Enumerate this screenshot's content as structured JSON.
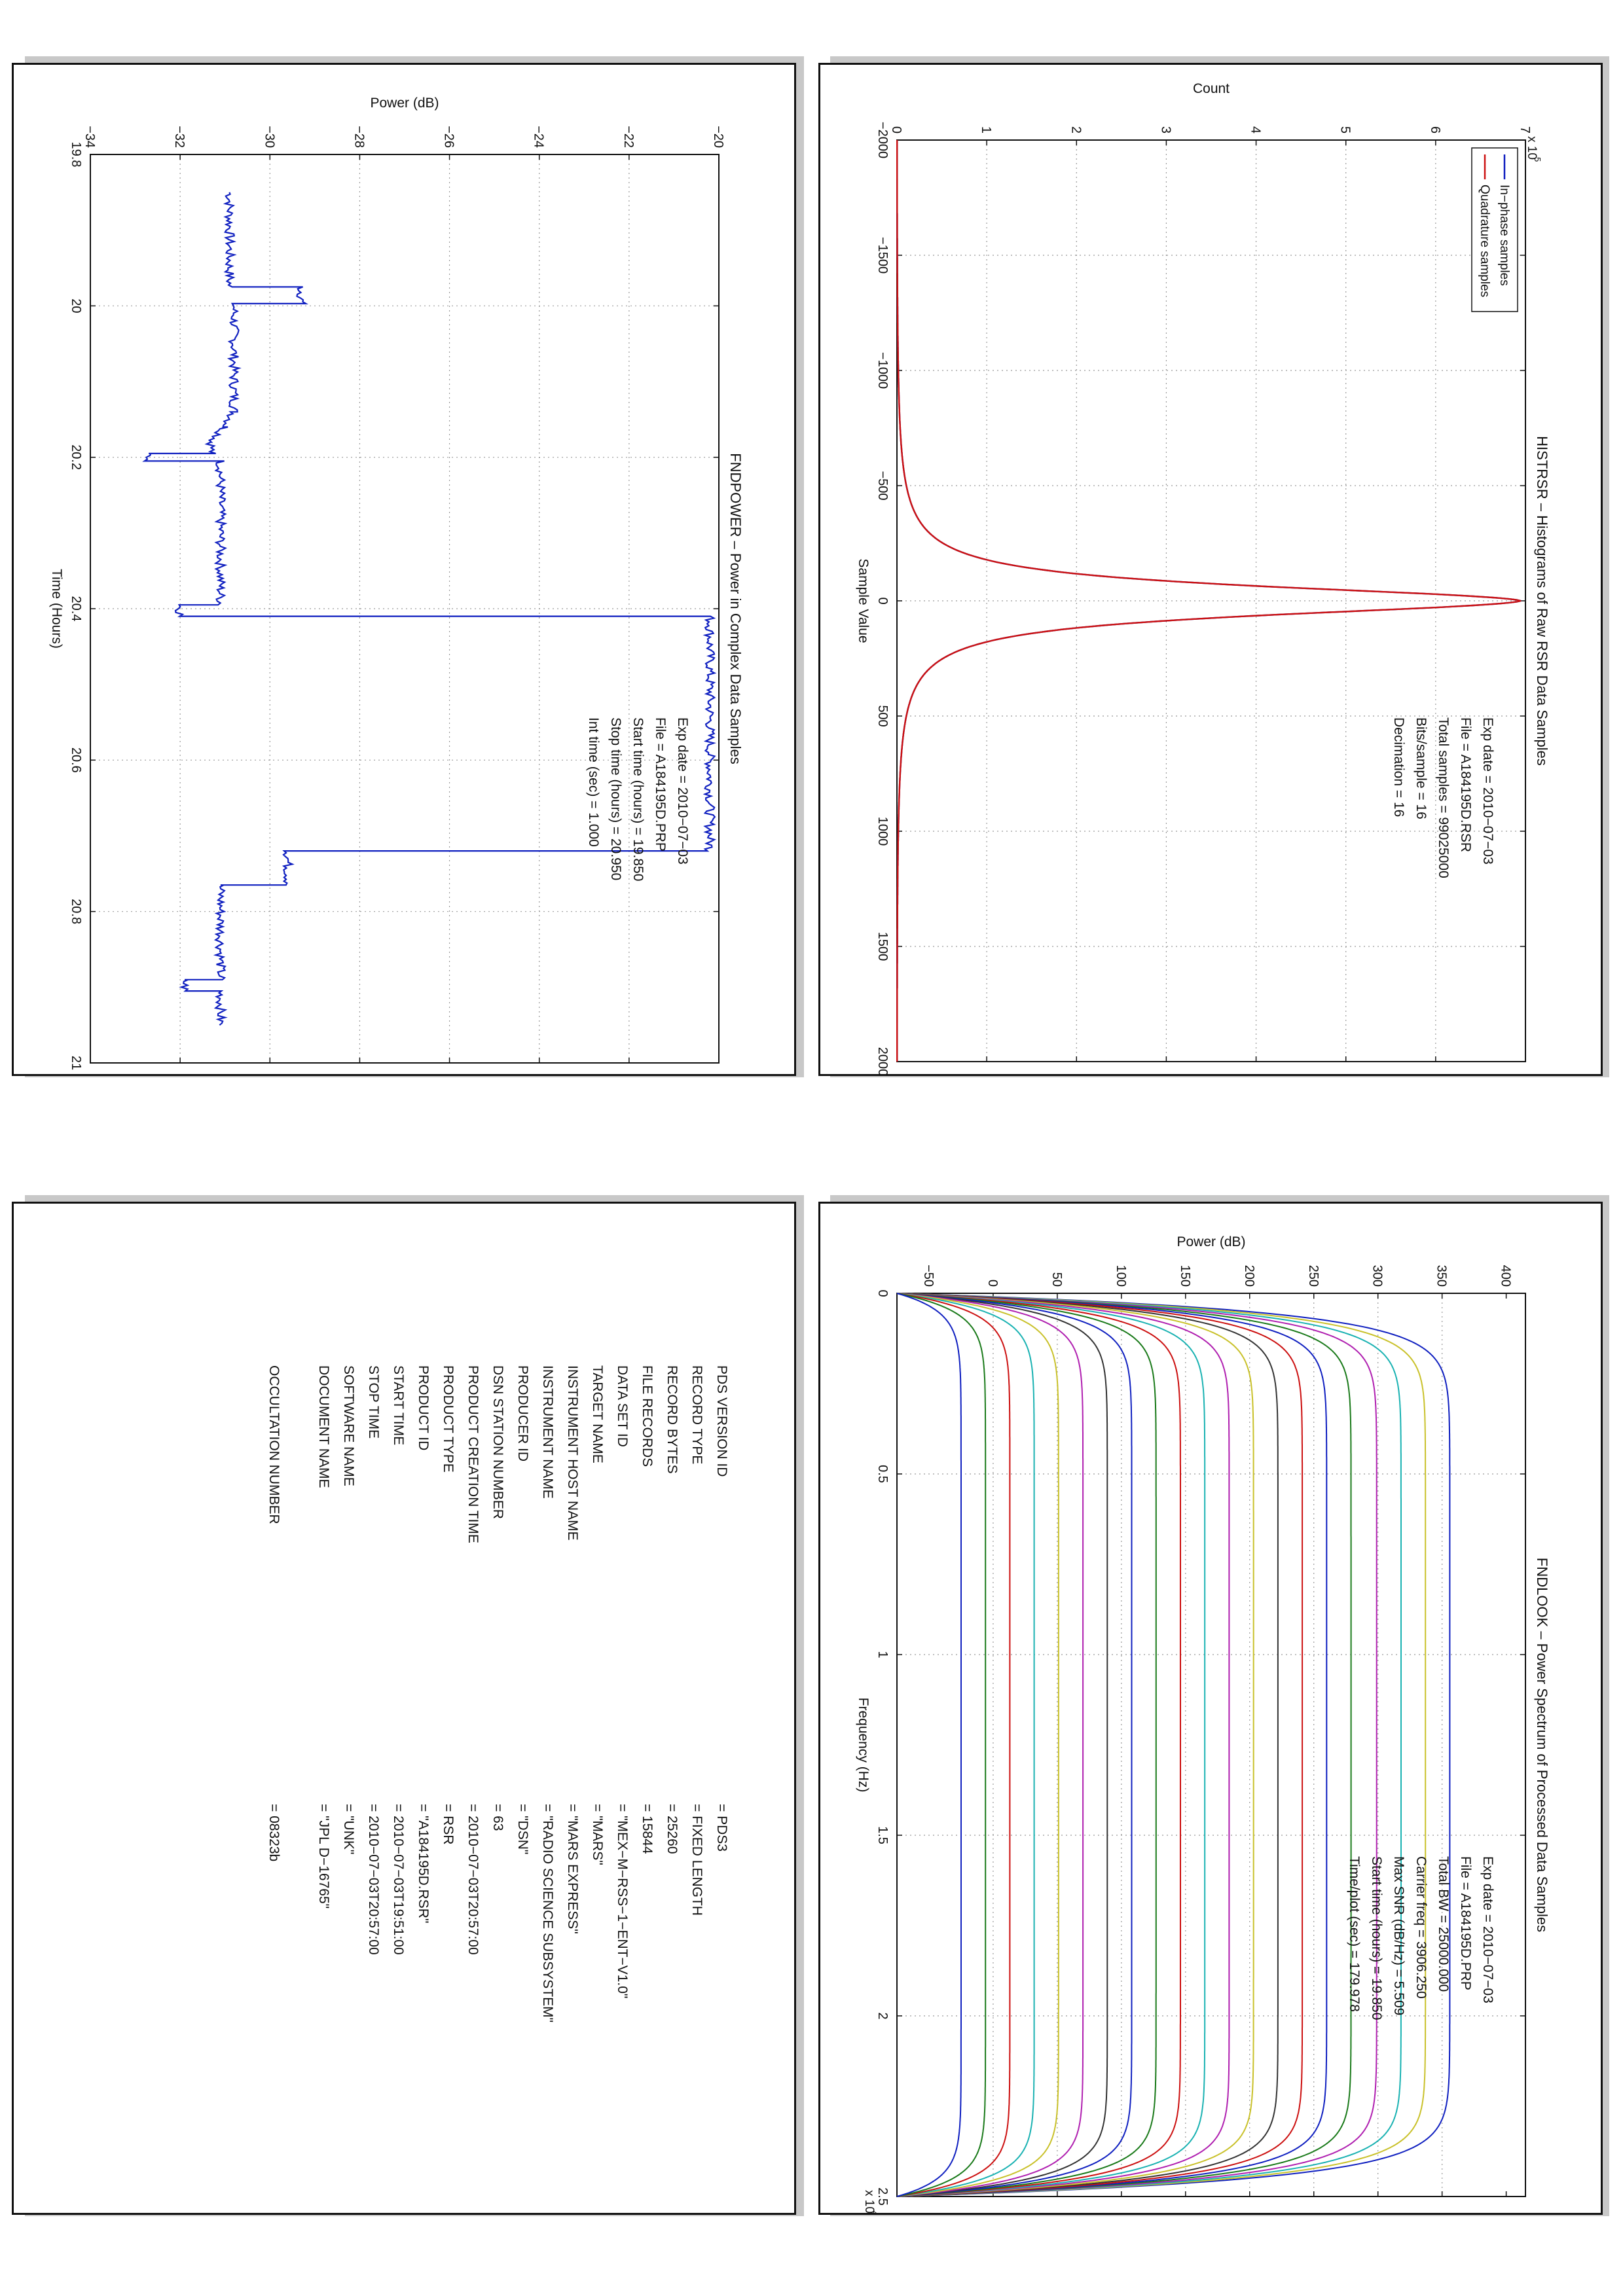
{
  "chart_data": [
    {
      "id": "histrsr",
      "type": "line",
      "title": "HISTRSR – Histograms of Raw RSR Data Samples",
      "xlabel": "Sample Value",
      "ylabel": "Count",
      "y_multiplier": "x 10",
      "y_multiplier_exp": "5",
      "xlim": [
        -2000,
        2000
      ],
      "ylim": [
        0,
        7
      ],
      "xticks": [
        "−2000",
        "−1500",
        "−1000",
        "−500",
        "0",
        "500",
        "1000",
        "1500",
        "2000"
      ],
      "yticks": [
        "0",
        "1",
        "2",
        "3",
        "4",
        "5",
        "6",
        "7"
      ],
      "grid": true,
      "legend_position": "top-left",
      "series": [
        {
          "name": "In−phase samples",
          "color": "#1020c0",
          "peak_x": 0,
          "peak_y": 6.95,
          "half_width": 90
        },
        {
          "name": "Quadrature samples",
          "color": "#cc1010",
          "peak_x": 0,
          "peak_y": 6.95,
          "half_width": 90
        }
      ],
      "annotation": [
        "Exp date = 2010−07−03",
        "File = A184195D.RSR",
        "Total samples =  99025000",
        "Bits/sample    =         16",
        "Decimation     =         16"
      ]
    },
    {
      "id": "fndpower",
      "type": "line",
      "title": "FNDPOWER – Power in Complex Data Samples",
      "xlabel": "Time (Hours)",
      "ylabel": "Power (dB)",
      "xlim": [
        19.8,
        21
      ],
      "ylim": [
        -34,
        -20
      ],
      "xticks": [
        "19.8",
        "20",
        "20.2",
        "20.4",
        "20.6",
        "20.8",
        "21"
      ],
      "yticks": [
        "−34",
        "−32",
        "−30",
        "−28",
        "−26",
        "−24",
        "−22",
        "−20"
      ],
      "grid": true,
      "series": [
        {
          "name": "",
          "color": "#1020c0",
          "x": [
            19.85,
            19.975,
            19.975,
            19.997,
            19.997,
            20.14,
            20.16,
            20.18,
            20.195,
            20.195,
            20.205,
            20.205,
            20.395,
            20.395,
            20.41,
            20.41,
            20.72,
            20.72,
            20.765,
            20.765,
            20.89,
            20.89,
            20.905,
            20.905,
            20.95
          ],
          "y": [
            -30.9,
            -30.9,
            -29.3,
            -29.3,
            -30.8,
            -30.8,
            -31.0,
            -31.3,
            -31.3,
            -32.7,
            -32.7,
            -31.1,
            -31.1,
            -32.0,
            -32.0,
            -20.2,
            -20.2,
            -29.6,
            -29.6,
            -31.1,
            -31.1,
            -31.9,
            -31.9,
            -31.1,
            -31.1
          ]
        }
      ],
      "annotation": [
        "Exp date = 2010−07−03",
        "File = A184195D.PRP",
        "Start time (hours) = 19.850",
        "Stop time (hours) = 20.950",
        "Int time (sec)  =       1.000"
      ]
    },
    {
      "id": "fndlook",
      "type": "line",
      "title": "FNDLOOK – Power Spectrum of Processed Data Samples",
      "xlabel": "Frequency (Hz)",
      "ylabel": "Power (dB)",
      "x_multiplier": "x 10",
      "x_multiplier_exp": "4",
      "xlim": [
        0,
        2.5
      ],
      "ylim": [
        -75,
        415
      ],
      "xticks": [
        "0",
        "0.5",
        "1",
        "1.5",
        "2",
        "2.5"
      ],
      "yticks": [
        "−50",
        "0",
        "50",
        "100",
        "150",
        "200",
        "250",
        "300",
        "350",
        "400"
      ],
      "grid": true,
      "series": [
        {
          "name": "",
          "color": "#1020c0",
          "plateau": 356
        },
        {
          "name": "",
          "color": "#c9c12a",
          "plateau": 337
        },
        {
          "name": "",
          "color": "#1ab2b2",
          "plateau": 318
        },
        {
          "name": "",
          "color": "#b020b0",
          "plateau": 299
        },
        {
          "name": "",
          "color": "#1a7a1a",
          "plateau": 279
        },
        {
          "name": "",
          "color": "#1020c0",
          "plateau": 260
        },
        {
          "name": "",
          "color": "#cc1010",
          "plateau": 241
        },
        {
          "name": "",
          "color": "#333333",
          "plateau": 222
        },
        {
          "name": "",
          "color": "#c9c12a",
          "plateau": 203
        },
        {
          "name": "",
          "color": "#b020b0",
          "plateau": 184
        },
        {
          "name": "",
          "color": "#1ab2b2",
          "plateau": 165
        },
        {
          "name": "",
          "color": "#cc1010",
          "plateau": 146
        },
        {
          "name": "",
          "color": "#1a7a1a",
          "plateau": 127
        },
        {
          "name": "",
          "color": "#1020c0",
          "plateau": 108
        },
        {
          "name": "",
          "color": "#333333",
          "plateau": 89
        },
        {
          "name": "",
          "color": "#b020b0",
          "plateau": 70
        },
        {
          "name": "",
          "color": "#c9c12a",
          "plateau": 51
        },
        {
          "name": "",
          "color": "#1ab2b2",
          "plateau": 32
        },
        {
          "name": "",
          "color": "#cc1010",
          "plateau": 13
        },
        {
          "name": "",
          "color": "#1a7a1a",
          "plateau": -6
        },
        {
          "name": "",
          "color": "#1020c0",
          "plateau": -25
        }
      ],
      "annotation": [
        "Exp date = 2010−07−03",
        "File = A184195D.PRP",
        "Total BW =     25000.000",
        "Carrier freq =    3906.250",
        "Max SNR (dB/Hz) =      5.509",
        "Start time (hours) =  19.850",
        "Time/plot (sec) =    179.978"
      ]
    }
  ],
  "label": {
    "rows": [
      {
        "key": "PDS VERSION ID",
        "value": "=  PDS3"
      },
      {
        "key": "RECORD TYPE",
        "value": "=  FIXED LENGTH"
      },
      {
        "key": "RECORD BYTES",
        "value": "=  25260"
      },
      {
        "key": "FILE RECORDS",
        "value": "=  15844"
      },
      {
        "key": "DATA SET ID",
        "value": "=  \"MEX−M−RSS−1−ENT−V1.0\""
      },
      {
        "key": "TARGET NAME",
        "value": "=  \"MARS\""
      },
      {
        "key": "INSTRUMENT HOST NAME",
        "value": "=  \"MARS EXPRESS\""
      },
      {
        "key": "INSTRUMENT NAME",
        "value": "=  \"RADIO SCIENCE SUBSYSTEM\""
      },
      {
        "key": "PRODUCER ID",
        "value": "=  \"DSN\""
      },
      {
        "key": "DSN STATION NUMBER",
        "value": "=  63"
      },
      {
        "key": "PRODUCT CREATION TIME",
        "value": "=  2010−07−03T20:57:00"
      },
      {
        "key": "PRODUCT TYPE",
        "value": "=  RSR"
      },
      {
        "key": "PRODUCT ID",
        "value": "=  \"A184195D.RSR\""
      },
      {
        "key": "START TIME",
        "value": "=  2010−07−03T19:51:00"
      },
      {
        "key": "STOP TIME",
        "value": "=  2010−07−03T20:57:00"
      },
      {
        "key": "SOFTWARE NAME",
        "value": "=  \"UNK\""
      },
      {
        "key": "DOCUMENT NAME",
        "value": "=  \"JPL D−16765\""
      },
      {
        "key": "",
        "value": ""
      },
      {
        "key": "OCCULTATION NUMBER",
        "value": "=  08323b"
      }
    ]
  }
}
